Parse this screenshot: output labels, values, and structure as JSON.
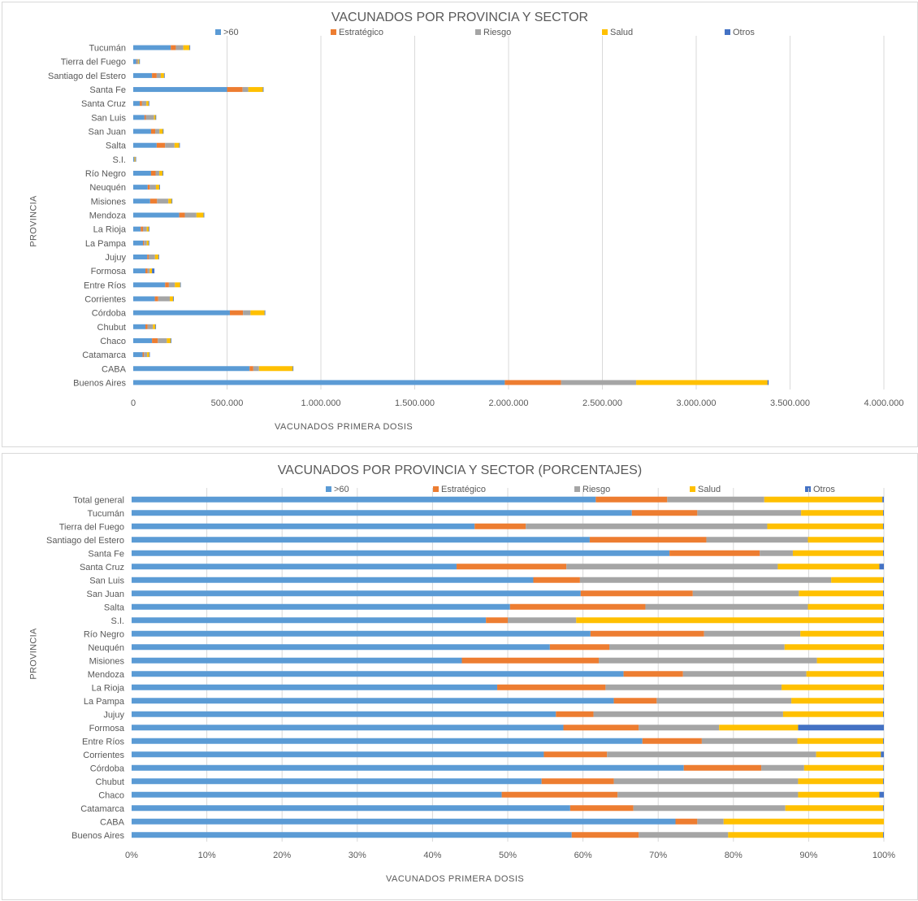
{
  "chart_data": [
    {
      "type": "bar",
      "orientation": "horizontal",
      "stacked": true,
      "title": "VACUNADOS POR PROVINCIA Y SECTOR",
      "xlabel": "VACUNADOS  PRIMERA DOSIS",
      "ylabel": "PROVINCIA",
      "xlim": [
        0,
        4000000
      ],
      "xticks": [
        "0",
        "500.000",
        "1.000.000",
        "1.500.000",
        "2.000.000",
        "2.500.000",
        "3.000.000",
        "3.500.000",
        "4.000.000"
      ],
      "legend_position": "top",
      "grid": true,
      "categories": [
        "Tucumán",
        "Tierra del Fuego",
        "Santiago del Estero",
        "Santa Fe",
        "Santa Cruz",
        "San Luis",
        "San Juan",
        "Salta",
        "S.I.",
        "Río Negro",
        "Neuquén",
        "Misiones",
        "Mendoza",
        "La Rioja",
        "La Pampa",
        "Jujuy",
        "Formosa",
        "Entre Ríos",
        "Corrientes",
        "Córdoba",
        "Chubut",
        "Chaco",
        "Catamarca",
        "CABA",
        "Buenos Aires"
      ],
      "series": [
        {
          "name": ">60",
          "color": "#5b9bd5",
          "values": [
            200000,
            17000,
            100000,
            500000,
            35000,
            60000,
            95000,
            125000,
            5500,
            95000,
            77000,
            90000,
            245000,
            40000,
            52000,
            75000,
            65000,
            170000,
            115000,
            515000,
            65000,
            100000,
            50000,
            620000,
            1980000
          ]
        },
        {
          "name": "Estratégico",
          "color": "#ed7d31",
          "values": [
            27000,
            2500,
            25000,
            83000,
            12000,
            7000,
            22000,
            45000,
            300,
            24000,
            11000,
            37000,
            30000,
            12000,
            5000,
            7000,
            11000,
            20000,
            18000,
            70000,
            11000,
            31000,
            7000,
            20000,
            300000
          ]
        },
        {
          "name": "Riesgo",
          "color": "#a5a5a5",
          "values": [
            40000,
            8000,
            22000,
            30000,
            23000,
            44000,
            23000,
            50000,
            1200,
            20000,
            33000,
            60000,
            62000,
            20000,
            15000,
            34000,
            12000,
            32000,
            62000,
            40000,
            29000,
            48000,
            17000,
            30000,
            400000
          ]
        },
        {
          "name": "Salud",
          "color": "#ffc000",
          "values": [
            33000,
            4500,
            17000,
            78000,
            12000,
            8000,
            18000,
            25000,
            4800,
            18000,
            18000,
            18000,
            38000,
            11000,
            10000,
            18000,
            12000,
            28000,
            18000,
            75000,
            13000,
            21000,
            11000,
            180000,
            700000
          ]
        },
        {
          "name": "Otros",
          "color": "#4472c4",
          "values": [
            300,
            100,
            200,
            800,
            500,
            50,
            200,
            300,
            10,
            200,
            100,
            100,
            500,
            100,
            50,
            200,
            13000,
            300,
            1000,
            1000,
            100,
            1800,
            100,
            500,
            6000
          ]
        }
      ]
    },
    {
      "type": "bar",
      "orientation": "horizontal",
      "stacked": true,
      "percent": true,
      "title": "VACUNADOS POR PROVINCIA Y SECTOR (PORCENTAJES)",
      "xlabel": "VACUNADOS  PRIMERA DOSIS",
      "ylabel": "PROVINCIA",
      "xlim": [
        0,
        100
      ],
      "xticks": [
        "0%",
        "10%",
        "20%",
        "30%",
        "40%",
        "50%",
        "60%",
        "70%",
        "80%",
        "90%",
        "100%"
      ],
      "legend_position": "top",
      "grid": true,
      "categories": [
        "Total general",
        "Tucumán",
        "Tierra del Fuego",
        "Santiago del Estero",
        "Santa Fe",
        "Santa Cruz",
        "San Luis",
        "San Juan",
        "Salta",
        "S.I.",
        "Río Negro",
        "Neuquén",
        "Misiones",
        "Mendoza",
        "La Rioja",
        "La Pampa",
        "Jujuy",
        "Formosa",
        "Entre Ríos",
        "Corrientes",
        "Córdoba",
        "Chubut",
        "Chaco",
        "Catamarca",
        "CABA",
        "Buenos Aires"
      ],
      "series": [
        {
          "name": ">60",
          "color": "#5b9bd5",
          "values": [
            61.7,
            66.5,
            45.6,
            60.9,
            71.5,
            43.2,
            53.4,
            59.7,
            50.3,
            47.1,
            61.0,
            55.6,
            43.9,
            65.4,
            48.6,
            64.1,
            56.4,
            57.4,
            67.9,
            54.8,
            73.4,
            54.5,
            49.2,
            58.3,
            72.3,
            58.5
          ]
        },
        {
          "name": "Estratégico",
          "color": "#ed7d31",
          "values": [
            9.5,
            8.7,
            6.8,
            15.5,
            12.0,
            14.6,
            6.2,
            14.9,
            18.0,
            2.9,
            15.1,
            7.9,
            18.2,
            7.9,
            14.4,
            5.7,
            5.0,
            10.0,
            7.9,
            8.4,
            10.3,
            9.6,
            15.4,
            8.4,
            2.9,
            8.9
          ]
        },
        {
          "name": "Riesgo",
          "color": "#a5a5a5",
          "values": [
            12.9,
            13.8,
            32.1,
            13.5,
            4.4,
            28.1,
            33.4,
            14.1,
            21.6,
            9.1,
            12.8,
            23.3,
            29.0,
            16.4,
            23.4,
            17.9,
            25.2,
            10.7,
            12.7,
            27.8,
            5.7,
            24.5,
            24.0,
            20.2,
            3.5,
            11.9
          ]
        },
        {
          "name": "Salud",
          "color": "#ffc000",
          "values": [
            15.7,
            10.9,
            15.4,
            10.0,
            12.0,
            13.5,
            6.9,
            11.2,
            10.0,
            40.8,
            11.0,
            13.1,
            8.8,
            10.2,
            13.5,
            12.2,
            13.3,
            10.5,
            11.4,
            8.6,
            10.5,
            11.3,
            10.8,
            13.0,
            21.3,
            20.6
          ]
        },
        {
          "name": "Otros",
          "color": "#4472c4",
          "values": [
            0.2,
            0.1,
            0.1,
            0.1,
            0.1,
            0.6,
            0.1,
            0.1,
            0.1,
            0.1,
            0.1,
            0.1,
            0.1,
            0.1,
            0.1,
            0.1,
            0.1,
            11.4,
            0.1,
            0.4,
            0.1,
            0.1,
            0.6,
            0.1,
            0.0,
            0.1
          ]
        }
      ]
    }
  ]
}
